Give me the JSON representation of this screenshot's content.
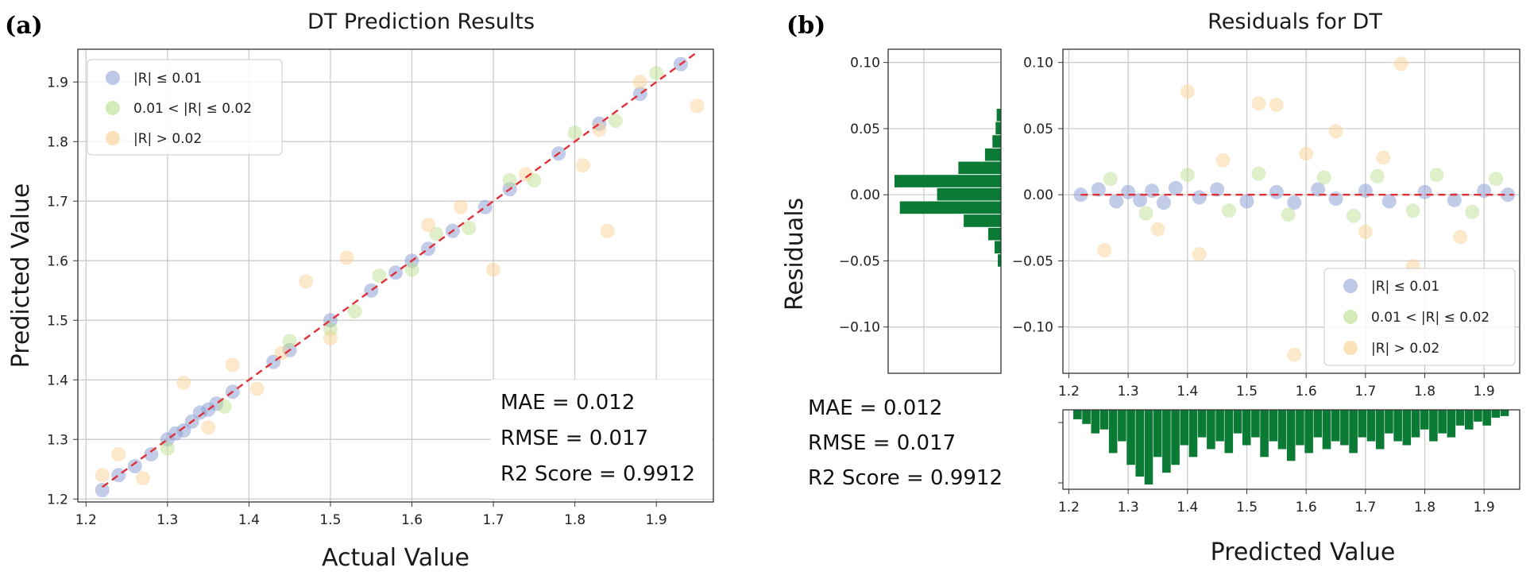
{
  "colors": {
    "low": "#8fa3d6",
    "mid": "#b8dc8a",
    "high": "#f8cf8c",
    "ref_line": "#e0303a",
    "hist": "#0b7a35"
  },
  "panel_a": {
    "label": "(a)",
    "stats": [
      "MAE = 0.012",
      "RMSE = 0.017",
      "R2 Score = 0.9912"
    ]
  },
  "panel_b": {
    "label": "(b)",
    "stats": [
      "MAE = 0.012",
      "RMSE = 0.017",
      "R2 Score = 0.9912"
    ]
  },
  "chart_data": [
    {
      "type": "scatter",
      "title": "DT Prediction Results",
      "xlabel": "Actual Value",
      "ylabel": "Predicted Value",
      "xlim": [
        1.19,
        1.97
      ],
      "ylim": [
        1.195,
        1.955
      ],
      "xticks": [
        "1.2",
        "1.3",
        "1.4",
        "1.5",
        "1.6",
        "1.7",
        "1.8",
        "1.9"
      ],
      "yticks": [
        "1.2",
        "1.3",
        "1.4",
        "1.5",
        "1.6",
        "1.7",
        "1.8",
        "1.9"
      ],
      "grid": true,
      "legend_position": "top-left",
      "legend": [
        "|R| ≤ 0.01",
        "0.01 < |R| ≤ 0.02",
        "|R| > 0.02"
      ],
      "reference_line": {
        "from": [
          1.22,
          1.22
        ],
        "to": [
          1.95,
          1.95
        ]
      },
      "series": [
        {
          "name": "|R| ≤ 0.01",
          "points": [
            [
              1.22,
              1.215
            ],
            [
              1.24,
              1.24
            ],
            [
              1.26,
              1.255
            ],
            [
              1.28,
              1.275
            ],
            [
              1.3,
              1.3
            ],
            [
              1.31,
              1.31
            ],
            [
              1.32,
              1.315
            ],
            [
              1.33,
              1.33
            ],
            [
              1.34,
              1.345
            ],
            [
              1.35,
              1.35
            ],
            [
              1.36,
              1.36
            ],
            [
              1.38,
              1.38
            ],
            [
              1.43,
              1.43
            ],
            [
              1.45,
              1.45
            ],
            [
              1.5,
              1.5
            ],
            [
              1.55,
              1.55
            ],
            [
              1.58,
              1.58
            ],
            [
              1.6,
              1.6
            ],
            [
              1.62,
              1.62
            ],
            [
              1.65,
              1.65
            ],
            [
              1.69,
              1.69
            ],
            [
              1.72,
              1.72
            ],
            [
              1.78,
              1.78
            ],
            [
              1.83,
              1.83
            ],
            [
              1.88,
              1.88
            ],
            [
              1.93,
              1.93
            ]
          ]
        },
        {
          "name": "0.01 < |R| ≤ 0.02",
          "points": [
            [
              1.3,
              1.285
            ],
            [
              1.37,
              1.355
            ],
            [
              1.45,
              1.465
            ],
            [
              1.5,
              1.485
            ],
            [
              1.53,
              1.515
            ],
            [
              1.56,
              1.575
            ],
            [
              1.6,
              1.585
            ],
            [
              1.63,
              1.645
            ],
            [
              1.67,
              1.655
            ],
            [
              1.72,
              1.735
            ],
            [
              1.75,
              1.735
            ],
            [
              1.8,
              1.815
            ],
            [
              1.85,
              1.835
            ],
            [
              1.9,
              1.915
            ]
          ]
        },
        {
          "name": "|R| > 0.02",
          "points": [
            [
              1.22,
              1.24
            ],
            [
              1.24,
              1.275
            ],
            [
              1.27,
              1.235
            ],
            [
              1.32,
              1.395
            ],
            [
              1.35,
              1.32
            ],
            [
              1.38,
              1.425
            ],
            [
              1.41,
              1.385
            ],
            [
              1.44,
              1.445
            ],
            [
              1.47,
              1.565
            ],
            [
              1.5,
              1.47
            ],
            [
              1.52,
              1.605
            ],
            [
              1.62,
              1.66
            ],
            [
              1.66,
              1.69
            ],
            [
              1.7,
              1.585
            ],
            [
              1.74,
              1.745
            ],
            [
              1.81,
              1.76
            ],
            [
              1.83,
              1.82
            ],
            [
              1.84,
              1.65
            ],
            [
              1.88,
              1.9
            ],
            [
              1.95,
              1.86
            ]
          ]
        }
      ]
    },
    {
      "type": "scatter",
      "title": "Residuals for DT",
      "xlabel": "Predicted Value",
      "ylabel": "Residuals",
      "xlim": [
        1.19,
        1.96
      ],
      "ylim": [
        -0.135,
        0.11
      ],
      "xticks": [
        "1.2",
        "1.3",
        "1.4",
        "1.5",
        "1.6",
        "1.7",
        "1.8",
        "1.9"
      ],
      "yticks": [
        "0.10",
        "0.05",
        "0.00",
        "−0.05",
        "−0.10"
      ],
      "grid": true,
      "legend_position": "bottom-right",
      "legend": [
        "|R| ≤ 0.01",
        "0.01 < |R| ≤ 0.02",
        "|R| > 0.02"
      ],
      "reference_line": {
        "from": [
          1.22,
          0.0
        ],
        "to": [
          1.95,
          0.0
        ]
      },
      "series": [
        {
          "name": "|R| ≤ 0.01",
          "points": [
            [
              1.22,
              0.0
            ],
            [
              1.25,
              0.004
            ],
            [
              1.28,
              -0.005
            ],
            [
              1.3,
              0.002
            ],
            [
              1.32,
              -0.004
            ],
            [
              1.34,
              0.003
            ],
            [
              1.36,
              -0.006
            ],
            [
              1.38,
              0.005
            ],
            [
              1.42,
              -0.002
            ],
            [
              1.45,
              0.004
            ],
            [
              1.5,
              -0.005
            ],
            [
              1.55,
              0.002
            ],
            [
              1.58,
              -0.006
            ],
            [
              1.62,
              0.004
            ],
            [
              1.65,
              -0.003
            ],
            [
              1.7,
              0.003
            ],
            [
              1.74,
              -0.005
            ],
            [
              1.8,
              0.002
            ],
            [
              1.85,
              -0.004
            ],
            [
              1.9,
              0.003
            ],
            [
              1.94,
              0.0
            ]
          ]
        },
        {
          "name": "0.01 < |R| ≤ 0.02",
          "points": [
            [
              1.27,
              0.012
            ],
            [
              1.33,
              -0.014
            ],
            [
              1.4,
              0.015
            ],
            [
              1.47,
              -0.012
            ],
            [
              1.52,
              0.016
            ],
            [
              1.57,
              -0.015
            ],
            [
              1.63,
              0.013
            ],
            [
              1.68,
              -0.016
            ],
            [
              1.72,
              0.014
            ],
            [
              1.78,
              -0.012
            ],
            [
              1.82,
              0.015
            ],
            [
              1.88,
              -0.013
            ],
            [
              1.92,
              0.012
            ]
          ]
        },
        {
          "name": "|R| > 0.02",
          "points": [
            [
              1.26,
              -0.042
            ],
            [
              1.35,
              -0.026
            ],
            [
              1.4,
              0.078
            ],
            [
              1.42,
              -0.045
            ],
            [
              1.46,
              0.026
            ],
            [
              1.52,
              0.069
            ],
            [
              1.55,
              0.068
            ],
            [
              1.58,
              -0.121
            ],
            [
              1.6,
              0.031
            ],
            [
              1.65,
              0.048
            ],
            [
              1.7,
              -0.028
            ],
            [
              1.73,
              0.028
            ],
            [
              1.76,
              0.099
            ],
            [
              1.78,
              -0.054
            ],
            [
              1.86,
              -0.032
            ]
          ]
        }
      ]
    },
    {
      "type": "bar",
      "title": "",
      "orientation": "horizontal",
      "note": "marginal histogram of residuals",
      "bins": [
        0.06,
        0.05,
        0.04,
        0.03,
        0.02,
        0.01,
        0.0,
        -0.01,
        -0.02,
        -0.03,
        -0.04,
        -0.05
      ],
      "values": [
        4,
        5,
        8,
        15,
        40,
        100,
        60,
        95,
        35,
        12,
        6,
        3
      ]
    },
    {
      "type": "bar",
      "title": "",
      "orientation": "vertical-down",
      "note": "marginal histogram of predicted values",
      "bins": [
        1.215,
        1.23,
        1.245,
        1.26,
        1.275,
        1.29,
        1.305,
        1.32,
        1.335,
        1.35,
        1.365,
        1.38,
        1.395,
        1.41,
        1.425,
        1.44,
        1.455,
        1.47,
        1.485,
        1.5,
        1.515,
        1.53,
        1.545,
        1.56,
        1.575,
        1.59,
        1.605,
        1.62,
        1.635,
        1.65,
        1.665,
        1.68,
        1.695,
        1.71,
        1.725,
        1.74,
        1.755,
        1.77,
        1.785,
        1.8,
        1.815,
        1.83,
        1.845,
        1.86,
        1.875,
        1.89,
        1.905,
        1.92,
        1.935
      ],
      "values": [
        12,
        18,
        30,
        25,
        55,
        40,
        70,
        85,
        95,
        60,
        80,
        70,
        45,
        60,
        35,
        50,
        40,
        55,
        30,
        45,
        35,
        60,
        40,
        50,
        65,
        45,
        55,
        35,
        50,
        40,
        45,
        55,
        35,
        40,
        50,
        30,
        40,
        45,
        35,
        25,
        40,
        30,
        35,
        20,
        25,
        15,
        20,
        10,
        8
      ]
    }
  ]
}
